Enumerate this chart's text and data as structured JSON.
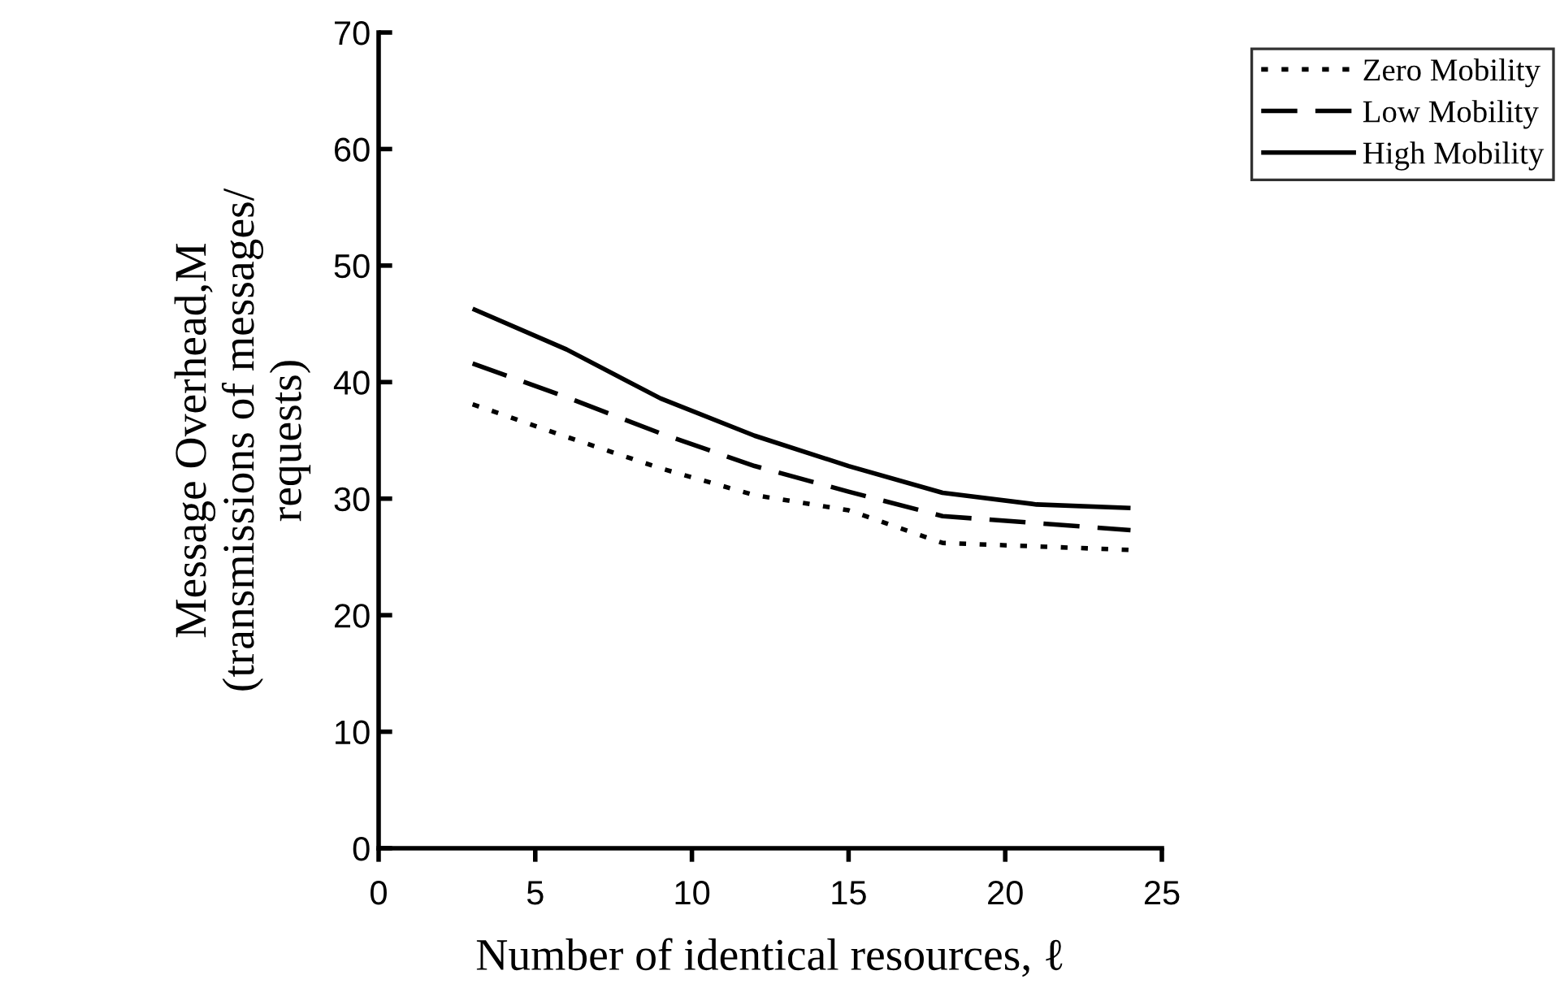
{
  "chart_data": {
    "type": "line",
    "xlabel": "Number of identical resources, ℓ",
    "ylabel": "Message Overhead,M\n(transmissions of messages/\nrequests)",
    "x": [
      3,
      6,
      9,
      12,
      15,
      18,
      21,
      24
    ],
    "series": [
      {
        "name": "Zero Mobility",
        "color": "#000000",
        "line_style": "dotted",
        "values": [
          38.1,
          35.3,
          32.6,
          30.3,
          29.0,
          26.2,
          25.9,
          25.6
        ]
      },
      {
        "name": "Low Mobility",
        "color": "#000000",
        "line_style": "dashed",
        "values": [
          41.6,
          38.7,
          35.6,
          32.8,
          30.6,
          28.5,
          27.9,
          27.3
        ]
      },
      {
        "name": "High Mobility",
        "color": "#000000",
        "line_style": "solid",
        "values": [
          46.3,
          42.8,
          38.6,
          35.4,
          32.8,
          30.5,
          29.5,
          29.2
        ]
      }
    ],
    "xlim": [
      0,
      25
    ],
    "xticks": [
      0,
      5,
      10,
      15,
      20,
      25
    ],
    "ylim": [
      0,
      70
    ],
    "yticks": [
      0,
      10,
      20,
      30,
      40,
      50,
      60,
      70
    ],
    "grid": false,
    "legend": "top right",
    "marker": "none"
  }
}
